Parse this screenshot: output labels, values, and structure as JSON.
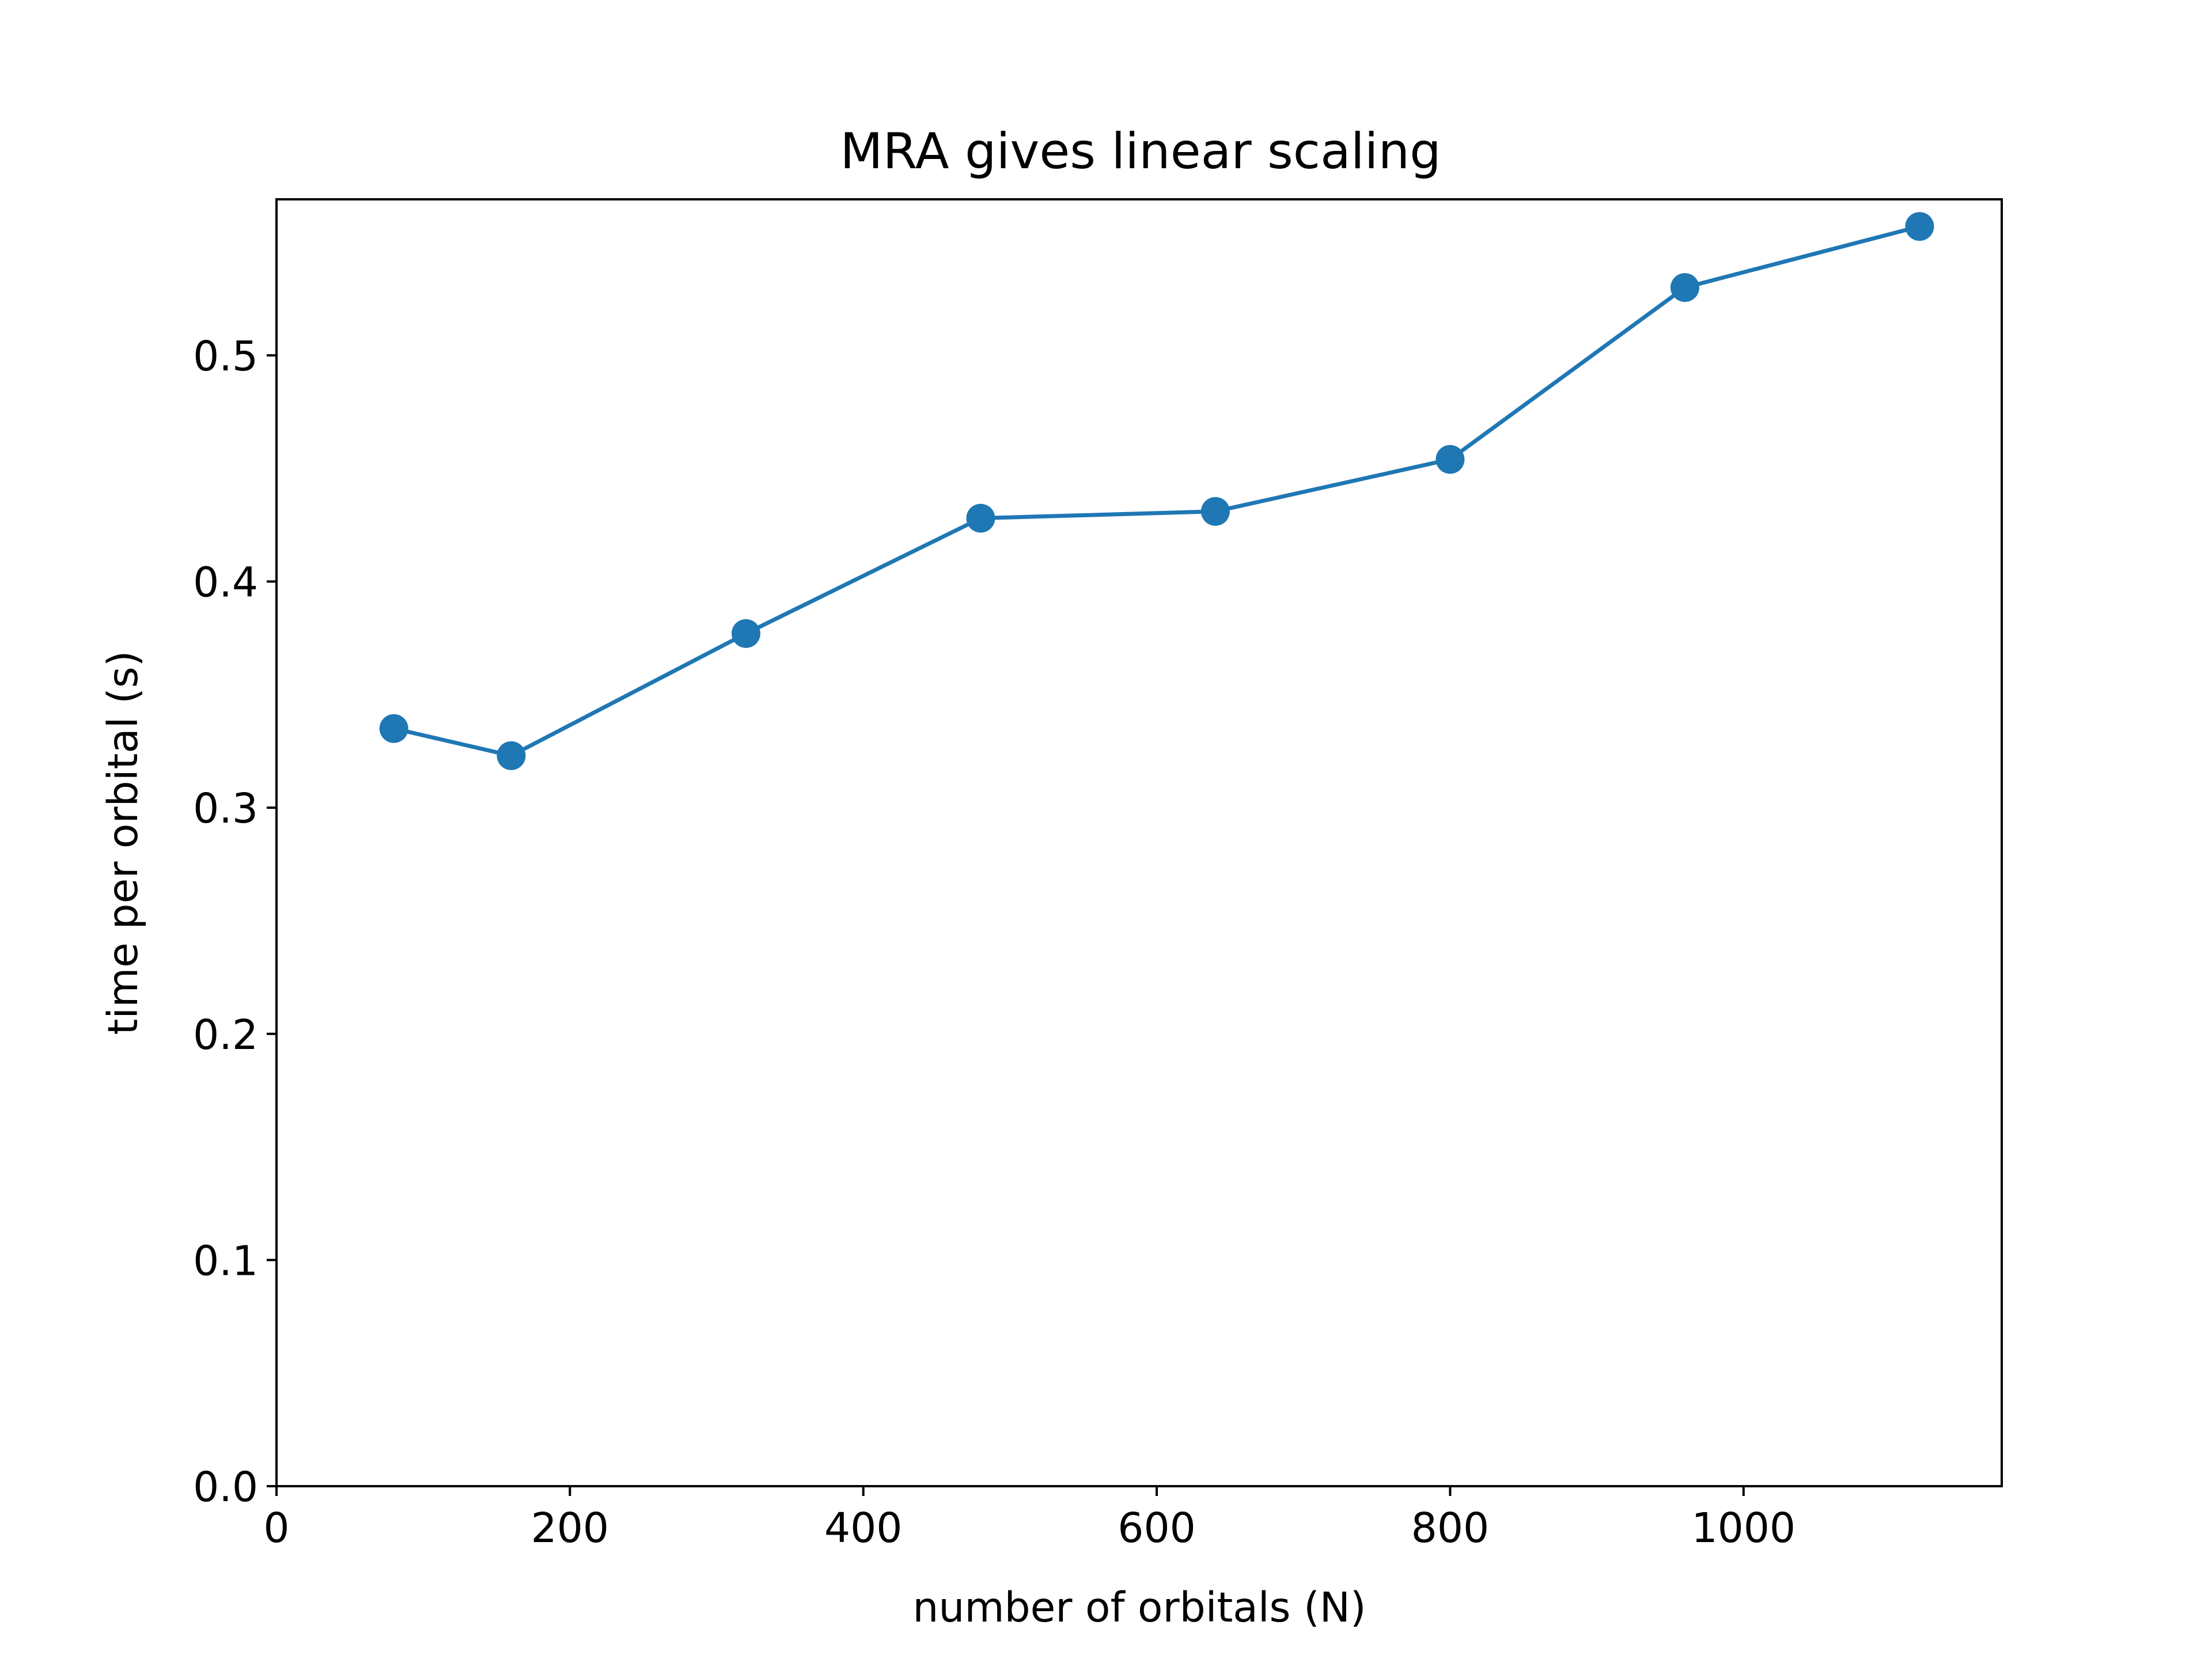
{
  "chart_data": {
    "type": "line",
    "title": "MRA gives linear scaling",
    "xlabel": "number of orbitals (N)",
    "ylabel": "time per orbital (s)",
    "xlim": [
      0,
      1176
    ],
    "ylim": [
      0,
      0.569
    ],
    "xticks": [
      0,
      200,
      400,
      600,
      800,
      1000
    ],
    "xtick_labels": [
      "0",
      "200",
      "400",
      "600",
      "800",
      "1000"
    ],
    "yticks": [
      0.0,
      0.1,
      0.2,
      0.3,
      0.4,
      0.5
    ],
    "ytick_labels": [
      "0.0",
      "0.1",
      "0.2",
      "0.3",
      "0.4",
      "0.5"
    ],
    "grid": false,
    "series": [
      {
        "color": "#1f77b4",
        "marker": "circle",
        "x": [
          80,
          160,
          320,
          480,
          640,
          800,
          960,
          1120
        ],
        "y": [
          0.335,
          0.323,
          0.377,
          0.428,
          0.431,
          0.454,
          0.53,
          0.557
        ]
      }
    ]
  }
}
